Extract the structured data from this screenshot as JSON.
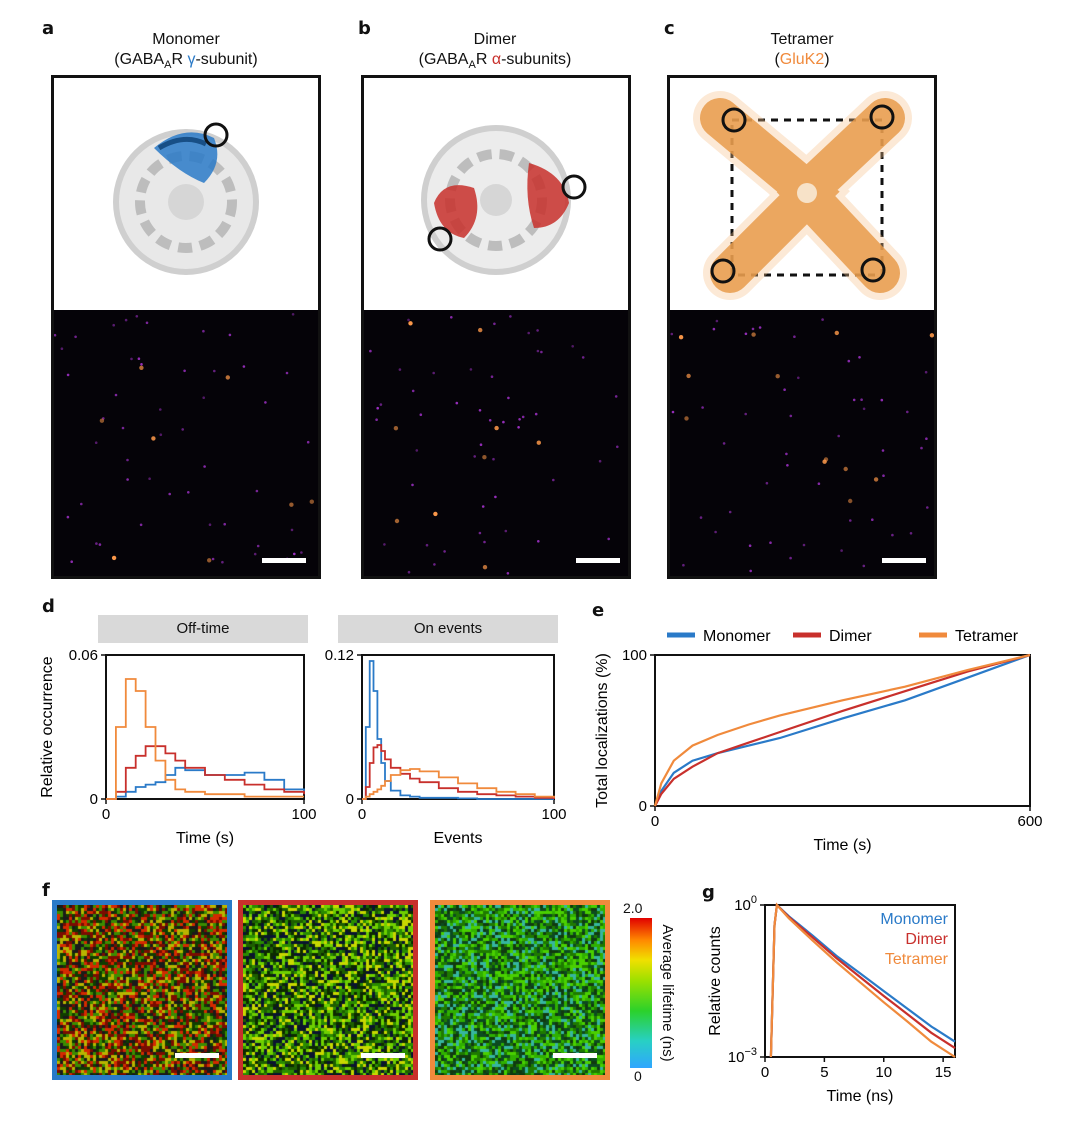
{
  "panels": {
    "a": {
      "label": "a",
      "title_line1": "Monomer",
      "title_pre": "(GABA",
      "title_sub": "A",
      "title_mid": "R ",
      "title_accent": "γ",
      "title_post": "-subunit)",
      "accent_color": "#2a7ac8"
    },
    "b": {
      "label": "b",
      "title_line1": "Dimer",
      "title_pre": "(GABA",
      "title_sub": "A",
      "title_mid": "R ",
      "title_accent": "α",
      "title_post": "-subunits)",
      "accent_color": "#c8302c"
    },
    "c": {
      "label": "c",
      "title_line1": "Tetramer",
      "title_open": "(",
      "title_accent": "GluK2",
      "title_close": ")",
      "accent_color": "#f08a3c"
    },
    "d": {
      "label": "d",
      "tag_left": "Off-time",
      "tag_right": "On events",
      "ylabel": "Relative occurrence"
    },
    "e": {
      "label": "e"
    },
    "f": {
      "label": "f",
      "colorbar_label": "Average lifetime (ns)",
      "colorbar_max": "2.0",
      "colorbar_min": "0"
    },
    "g": {
      "label": "g"
    }
  },
  "colors": {
    "monomer": "#2a7ac8",
    "dimer": "#c8302c",
    "tetramer": "#f08a3c"
  },
  "chart_data": [
    {
      "type": "line",
      "panel": "d-left",
      "title": "Off-time",
      "xlabel": "Time (s)",
      "ylabel": "Relative occurrence",
      "xlim": [
        0,
        100
      ],
      "ylim": [
        0,
        0.06
      ],
      "x_ticks": [
        "0",
        "100"
      ],
      "y_ticks": [
        "0",
        "0.06"
      ],
      "x": [
        0,
        5,
        10,
        15,
        20,
        25,
        30,
        35,
        40,
        50,
        60,
        70,
        80,
        90,
        100
      ],
      "series": [
        {
          "name": "Monomer",
          "values": [
            0.0,
            0.001,
            0.003,
            0.005,
            0.006,
            0.007,
            0.01,
            0.013,
            0.012,
            0.01,
            0.01,
            0.011,
            0.008,
            0.004,
            0.003
          ]
        },
        {
          "name": "Dimer",
          "values": [
            0.0,
            0.003,
            0.013,
            0.018,
            0.022,
            0.022,
            0.019,
            0.016,
            0.013,
            0.01,
            0.008,
            0.006,
            0.004,
            0.003,
            0.002
          ]
        },
        {
          "name": "Tetramer",
          "values": [
            0.0,
            0.03,
            0.05,
            0.045,
            0.03,
            0.016,
            0.008,
            0.004,
            0.003,
            0.002,
            0.002,
            0.001,
            0.001,
            0.001,
            0.001
          ]
        }
      ]
    },
    {
      "type": "line",
      "panel": "d-right",
      "title": "On events",
      "xlabel": "Events",
      "xlim": [
        0,
        100
      ],
      "ylim": [
        0,
        0.12
      ],
      "x_ticks": [
        "0",
        "100"
      ],
      "y_ticks": [
        "0",
        "0.12"
      ],
      "x": [
        0,
        2,
        4,
        6,
        8,
        10,
        12,
        15,
        20,
        25,
        30,
        40,
        50,
        60,
        70,
        80,
        90,
        100
      ],
      "series": [
        {
          "name": "Monomer",
          "values": [
            0.0,
            0.06,
            0.115,
            0.09,
            0.05,
            0.03,
            0.015,
            0.007,
            0.003,
            0.002,
            0.001,
            0.001,
            0.0005,
            0.0,
            0.0,
            0.0,
            0.0,
            0.0
          ]
        },
        {
          "name": "Dimer",
          "values": [
            0.0,
            0.01,
            0.03,
            0.043,
            0.045,
            0.04,
            0.033,
            0.026,
            0.021,
            0.017,
            0.014,
            0.009,
            0.006,
            0.004,
            0.003,
            0.002,
            0.001,
            0.0
          ]
        },
        {
          "name": "Tetramer",
          "values": [
            0.0,
            0.002,
            0.004,
            0.006,
            0.008,
            0.011,
            0.015,
            0.02,
            0.024,
            0.025,
            0.023,
            0.018,
            0.013,
            0.009,
            0.006,
            0.004,
            0.002,
            0.001
          ]
        }
      ]
    },
    {
      "type": "line",
      "panel": "e",
      "xlabel": "Time (s)",
      "ylabel": "Total localizations (%)",
      "xlim": [
        0,
        600
      ],
      "ylim": [
        0,
        100
      ],
      "x_ticks": [
        "0",
        "600"
      ],
      "y_ticks": [
        "0",
        "100"
      ],
      "legend": [
        "Monomer",
        "Dimer",
        "Tetramer"
      ],
      "legend_position": "top",
      "x": [
        0,
        10,
        30,
        60,
        100,
        150,
        200,
        300,
        400,
        500,
        600
      ],
      "series": [
        {
          "name": "Monomer",
          "values": [
            0,
            10,
            22,
            30,
            35,
            40,
            45,
            58,
            70,
            85,
            100
          ]
        },
        {
          "name": "Dimer",
          "values": [
            0,
            8,
            18,
            26,
            35,
            42,
            49,
            63,
            76,
            89,
            100
          ]
        },
        {
          "name": "Tetramer",
          "values": [
            0,
            15,
            30,
            40,
            47,
            54,
            60,
            70,
            79,
            90,
            100
          ]
        }
      ]
    },
    {
      "type": "line",
      "panel": "g",
      "xlabel": "Time (ns)",
      "ylabel": "Relative counts",
      "y_scale": "log",
      "xlim": [
        0,
        16
      ],
      "ylim": [
        0.001,
        1
      ],
      "x_ticks": [
        "0",
        "5",
        "10",
        "15"
      ],
      "y_tick_base": "10",
      "y_tick_exp": [
        "0",
        "−3"
      ],
      "legend": [
        "Monomer",
        "Dimer",
        "Tetramer"
      ],
      "legend_position": "top-right",
      "x": [
        0.5,
        0.8,
        1.0,
        2,
        4,
        6,
        8,
        10,
        12,
        14,
        16
      ],
      "series": [
        {
          "name": "Monomer",
          "values": [
            0.001,
            0.4,
            1.0,
            0.6,
            0.25,
            0.1,
            0.045,
            0.02,
            0.009,
            0.004,
            0.002
          ]
        },
        {
          "name": "Dimer",
          "values": [
            0.001,
            0.4,
            1.0,
            0.58,
            0.23,
            0.09,
            0.038,
            0.016,
            0.007,
            0.003,
            0.0015
          ]
        },
        {
          "name": "Tetramer",
          "values": [
            0.001,
            0.4,
            1.0,
            0.55,
            0.2,
            0.075,
            0.03,
            0.012,
            0.005,
            0.002,
            0.001
          ]
        }
      ]
    }
  ]
}
